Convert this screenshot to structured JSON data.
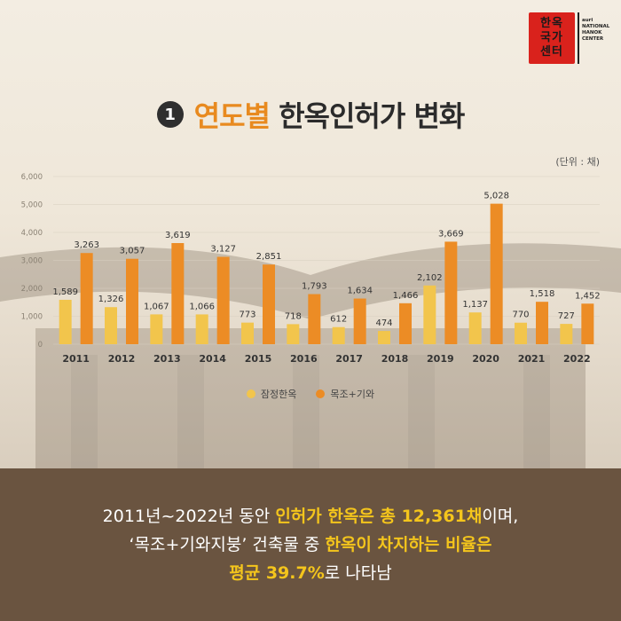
{
  "logo": {
    "glyphs_line1": "한옥",
    "glyphs_line2": "국가",
    "glyphs_line3": "센터",
    "text_lines": [
      "auri",
      "NATIONAL",
      "HANOK",
      "CENTER"
    ]
  },
  "title": {
    "number": "1",
    "highlight": "연도별",
    "rest": "한옥인허가 변화"
  },
  "unit_label": "(단위 : 채)",
  "colors": {
    "series1": "#f2c54c",
    "series2": "#ec8c25",
    "accent": "#e88a1f",
    "bottom_bg": "#6a5440",
    "highlight_text": "#f4c51c"
  },
  "chart_data": {
    "type": "bar",
    "categories": [
      "2011",
      "2012",
      "2013",
      "2014",
      "2015",
      "2016",
      "2017",
      "2018",
      "2019",
      "2020",
      "2021",
      "2022"
    ],
    "series": [
      {
        "name": "잠정한옥",
        "values": [
          1589,
          1326,
          1067,
          1066,
          773,
          718,
          612,
          474,
          2102,
          1137,
          770,
          727
        ]
      },
      {
        "name": "목조+기와",
        "values": [
          3263,
          3057,
          3619,
          3127,
          2851,
          1793,
          1634,
          1466,
          3669,
          5028,
          1518,
          1452
        ]
      }
    ],
    "data_labels": [
      [
        "1,589",
        "1,326",
        "1,067",
        "1,066",
        "773",
        "718",
        "612",
        "474",
        "2,102",
        "1,137",
        "770",
        "727"
      ],
      [
        "3,263",
        "3,057",
        "3,619",
        "3,127",
        "2,851",
        "1,793",
        "1,634",
        "1,466",
        "3,669",
        "5,028",
        "1,518",
        "1,452"
      ]
    ],
    "y_ticks": [
      "0",
      "1,000",
      "2,000",
      "3,000",
      "4,000",
      "5,000",
      "6,000"
    ],
    "ylim": [
      0,
      6000
    ],
    "grid": true,
    "legend": "bottom-center"
  },
  "summary": {
    "line1_a": "2011년~2022년 동안 ",
    "line1_b": "인허가 한옥은 총 12,361채",
    "line1_c": "이며,",
    "line2_a": "‘목조+기와지붕’ 건축물 중 ",
    "line2_b": "한옥이 차지하는 비율은",
    "line3_a": "평균 39.7%",
    "line3_b": "로 나타남"
  }
}
